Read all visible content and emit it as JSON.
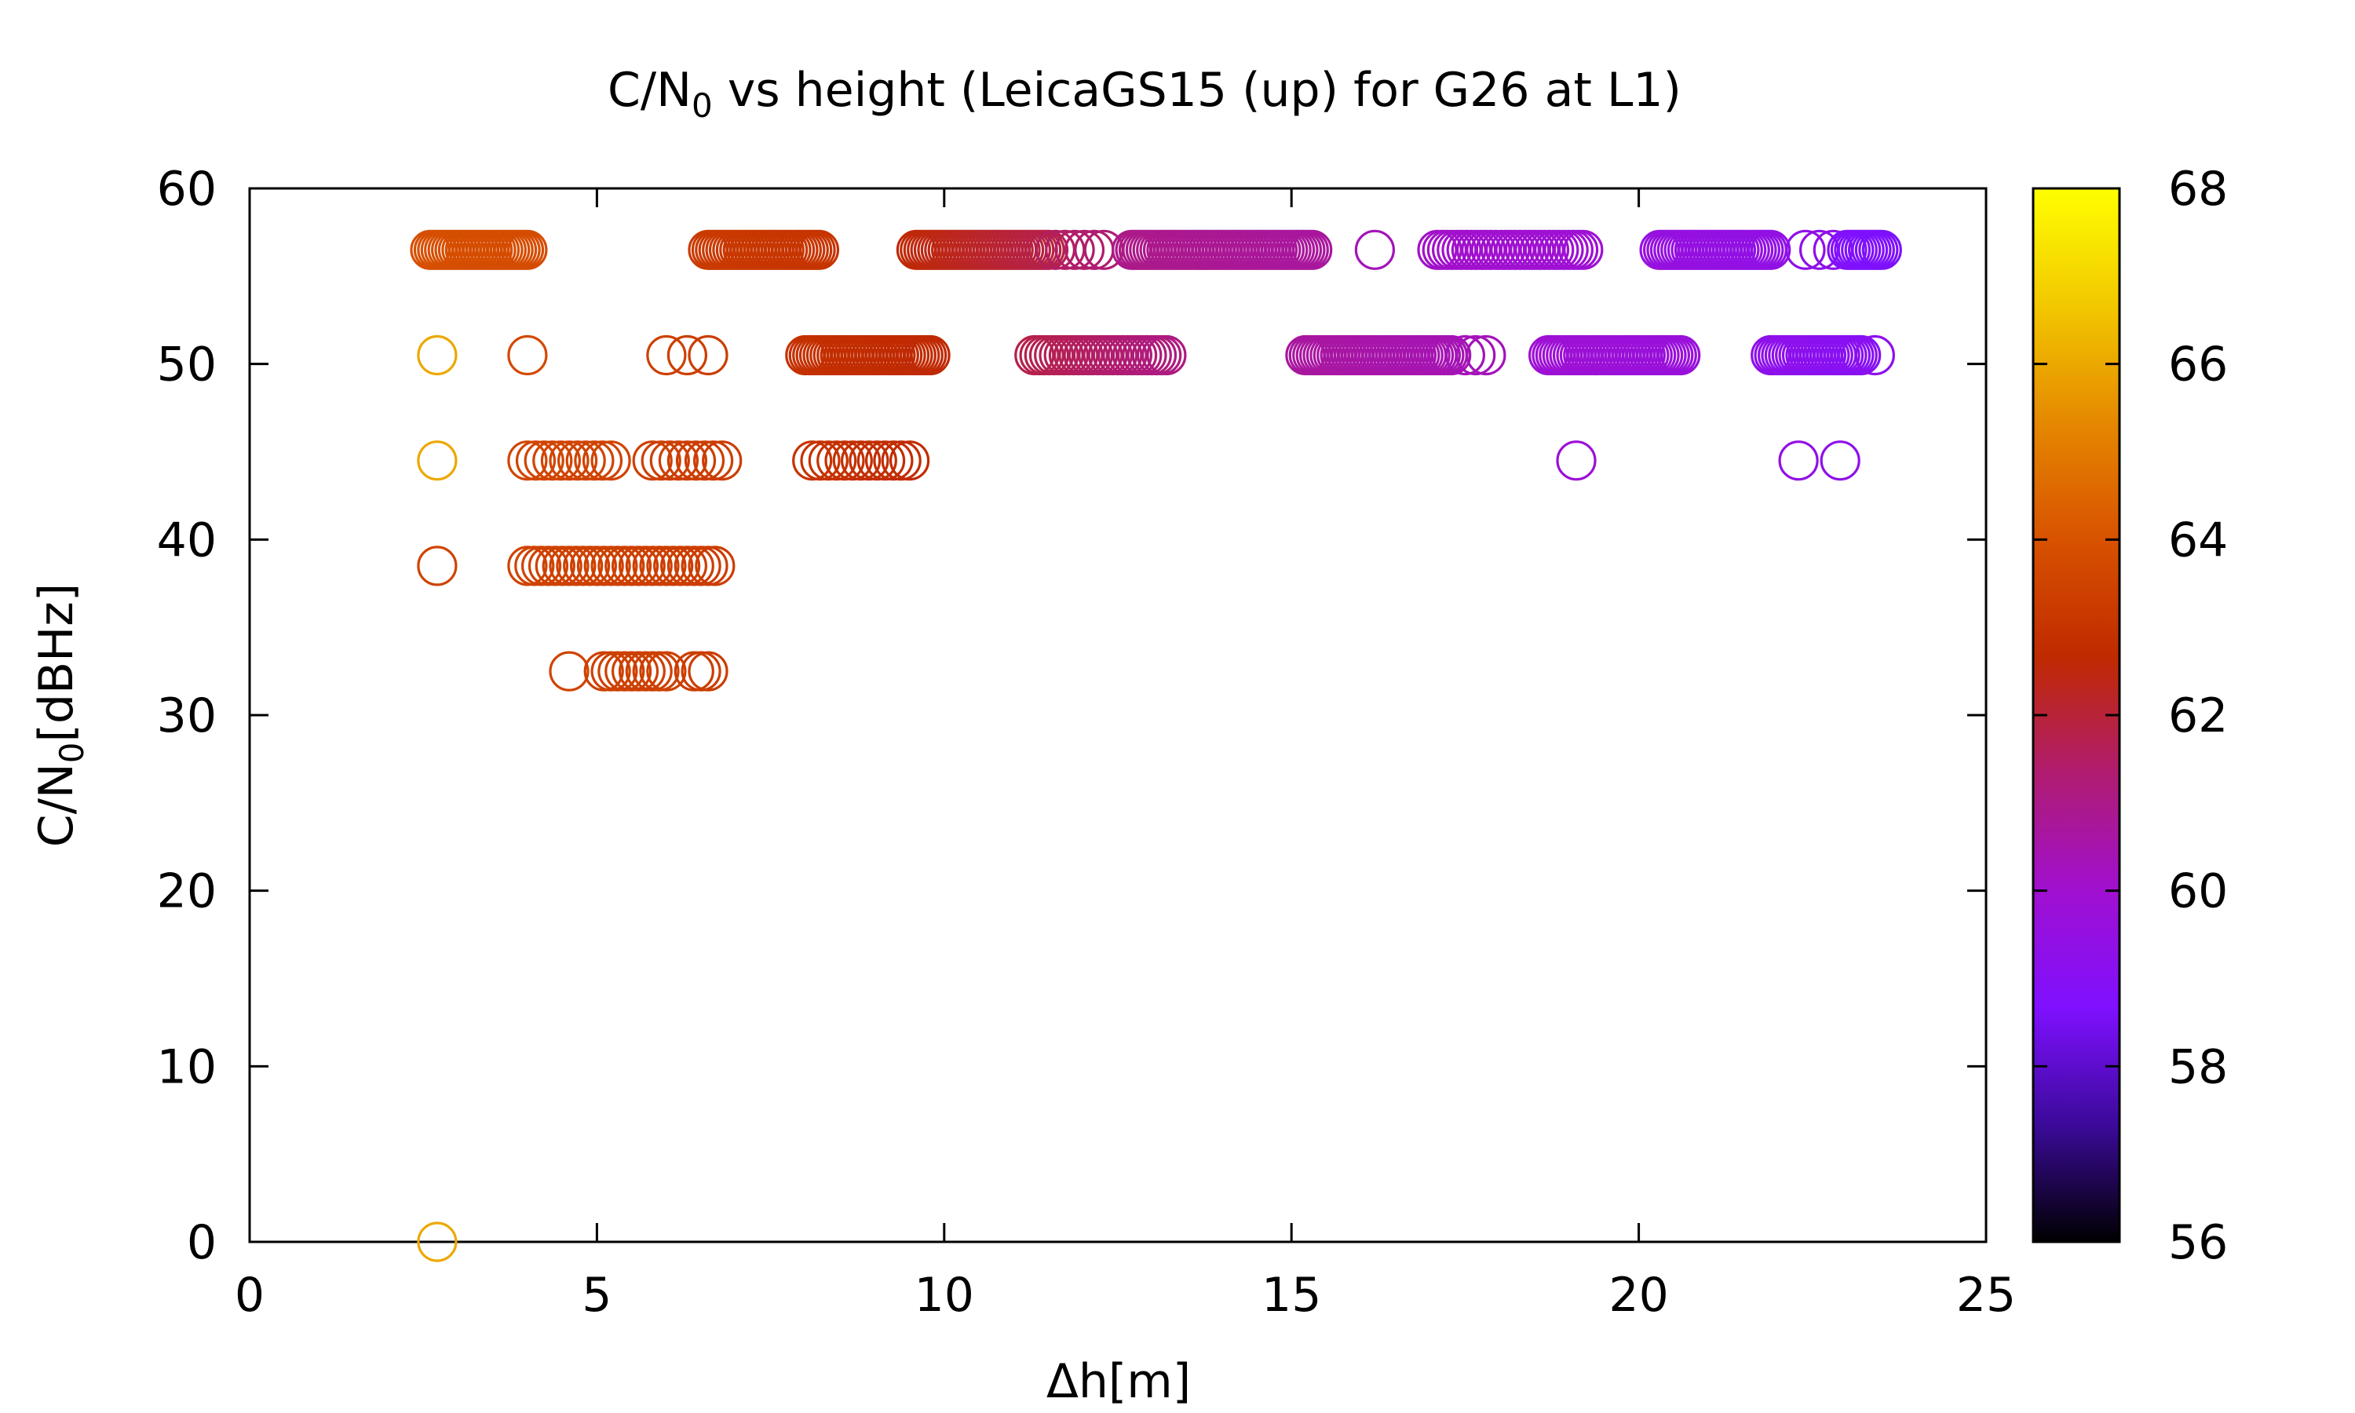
{
  "chart_data": {
    "type": "scatter",
    "title_main": "C/N",
    "title_sub": "0",
    "title_rest": " vs height (LeicaGS15 (up) for G26 at L1)",
    "xlabel": "Δh[m]",
    "ylabel_main": "C/N",
    "ylabel_sub": "0",
    "ylabel_rest": "[dBHz]",
    "xlim": [
      0,
      25
    ],
    "ylim": [
      0,
      60
    ],
    "xticks": [
      "0",
      "5",
      "10",
      "15",
      "20",
      "25"
    ],
    "yticks": [
      "0",
      "10",
      "20",
      "30",
      "40",
      "50",
      "60"
    ],
    "colorbar": {
      "range": [
        56,
        68
      ],
      "ticks": [
        "56",
        "58",
        "60",
        "62",
        "64",
        "66",
        "68"
      ],
      "palette": [
        "#000000",
        "#3b0a9a",
        "#7f10ff",
        "#a010d0",
        "#b01c70",
        "#c02a00",
        "#d85200",
        "#e58800",
        "#f2c800",
        "#ffff00"
      ]
    },
    "marker": "open-circle",
    "runs": [
      {
        "y": 56.5,
        "x0": 2.6,
        "x1": 4.0,
        "step": 0.05,
        "c0": 63.9,
        "c1": 63.8
      },
      {
        "y": 56.5,
        "x0": 6.6,
        "x1": 8.2,
        "step": 0.05,
        "c0": 63.2,
        "c1": 63.0
      },
      {
        "y": 56.5,
        "x0": 9.6,
        "x1": 11.5,
        "step": 0.05,
        "c0": 62.6,
        "c1": 61.8
      },
      {
        "y": 56.5,
        "x0": 11.6,
        "x1": 12.3,
        "step": 0.15,
        "c0": 61.5,
        "c1": 61.3
      },
      {
        "y": 56.5,
        "x0": 12.7,
        "x1": 15.3,
        "step": 0.05,
        "c0": 61.0,
        "c1": 60.7
      },
      {
        "y": 56.5,
        "x0": 16.2,
        "x1": 16.2,
        "step": 0.1,
        "c0": 60.3,
        "c1": 60.3
      },
      {
        "y": 56.5,
        "x0": 17.1,
        "x1": 19.2,
        "step": 0.07,
        "c0": 60.1,
        "c1": 59.9
      },
      {
        "y": 56.5,
        "x0": 20.3,
        "x1": 21.9,
        "step": 0.05,
        "c0": 59.6,
        "c1": 59.4
      },
      {
        "y": 56.5,
        "x0": 22.4,
        "x1": 22.8,
        "step": 0.2,
        "c0": 59.3,
        "c1": 59.3
      },
      {
        "y": 56.5,
        "x0": 23.0,
        "x1": 23.5,
        "step": 0.05,
        "c0": 58.8,
        "c1": 58.6
      },
      {
        "y": 50.5,
        "x0": 2.7,
        "x1": 2.7,
        "step": 0.1,
        "c0": 66.0,
        "c1": 66.0
      },
      {
        "y": 50.5,
        "x0": 4.0,
        "x1": 4.0,
        "step": 0.1,
        "c0": 63.7,
        "c1": 63.7
      },
      {
        "y": 50.5,
        "x0": 6.0,
        "x1": 6.6,
        "step": 0.3,
        "c0": 63.4,
        "c1": 63.3
      },
      {
        "y": 50.5,
        "x0": 8.0,
        "x1": 9.8,
        "step": 0.05,
        "c0": 62.9,
        "c1": 62.6
      },
      {
        "y": 50.5,
        "x0": 11.3,
        "x1": 13.2,
        "step": 0.07,
        "c0": 61.8,
        "c1": 61.1
      },
      {
        "y": 50.5,
        "x0": 15.2,
        "x1": 17.3,
        "step": 0.05,
        "c0": 60.7,
        "c1": 60.4
      },
      {
        "y": 50.5,
        "x0": 17.5,
        "x1": 17.8,
        "step": 0.15,
        "c0": 60.3,
        "c1": 60.3
      },
      {
        "y": 50.5,
        "x0": 18.7,
        "x1": 20.6,
        "step": 0.05,
        "c0": 59.9,
        "c1": 59.7
      },
      {
        "y": 50.5,
        "x0": 21.9,
        "x1": 23.2,
        "step": 0.05,
        "c0": 59.3,
        "c1": 59.0
      },
      {
        "y": 50.5,
        "x0": 23.4,
        "x1": 23.4,
        "step": 0.1,
        "c0": 59.2,
        "c1": 59.2
      },
      {
        "y": 44.5,
        "x0": 2.7,
        "x1": 2.7,
        "step": 0.1,
        "c0": 66.0,
        "c1": 66.0
      },
      {
        "y": 44.5,
        "x0": 4.0,
        "x1": 5.2,
        "step": 0.12,
        "c0": 63.6,
        "c1": 63.5
      },
      {
        "y": 44.5,
        "x0": 5.8,
        "x1": 6.8,
        "step": 0.12,
        "c0": 63.4,
        "c1": 63.3
      },
      {
        "y": 44.5,
        "x0": 8.1,
        "x1": 9.5,
        "step": 0.12,
        "c0": 63.0,
        "c1": 62.7
      },
      {
        "y": 44.5,
        "x0": 19.1,
        "x1": 19.1,
        "step": 0.1,
        "c0": 59.8,
        "c1": 59.8
      },
      {
        "y": 44.5,
        "x0": 22.3,
        "x1": 22.3,
        "step": 0.1,
        "c0": 59.4,
        "c1": 59.4
      },
      {
        "y": 44.5,
        "x0": 22.9,
        "x1": 22.9,
        "step": 0.1,
        "c0": 59.3,
        "c1": 59.3
      },
      {
        "y": 38.5,
        "x0": 2.7,
        "x1": 2.7,
        "step": 0.1,
        "c0": 63.5,
        "c1": 63.5
      },
      {
        "y": 38.5,
        "x0": 4.0,
        "x1": 6.7,
        "step": 0.1,
        "c0": 63.5,
        "c1": 63.3
      },
      {
        "y": 32.5,
        "x0": 4.6,
        "x1": 4.6,
        "step": 0.1,
        "c0": 63.5,
        "c1": 63.5
      },
      {
        "y": 32.5,
        "x0": 5.1,
        "x1": 6.0,
        "step": 0.1,
        "c0": 63.4,
        "c1": 63.4
      },
      {
        "y": 32.5,
        "x0": 6.4,
        "x1": 6.6,
        "step": 0.1,
        "c0": 63.3,
        "c1": 63.3
      },
      {
        "y": 0.0,
        "x0": 2.7,
        "x1": 2.7,
        "step": 0.1,
        "c0": 66.0,
        "c1": 66.0
      }
    ]
  }
}
